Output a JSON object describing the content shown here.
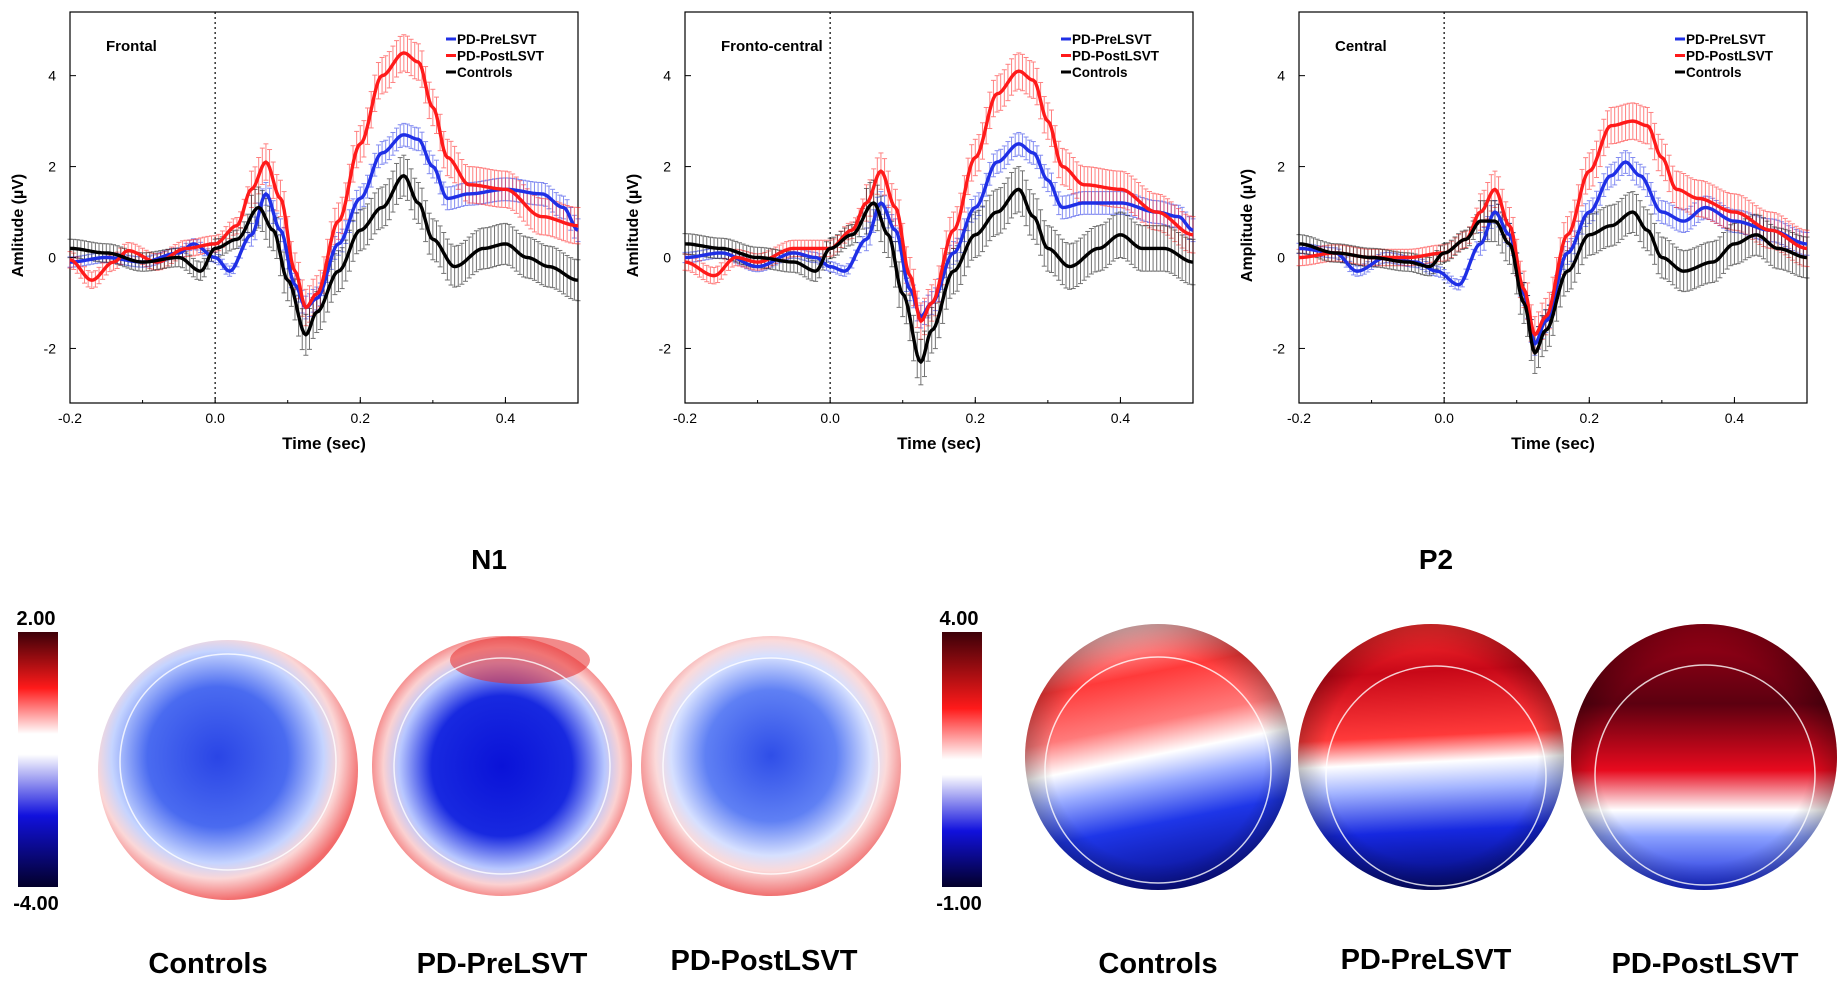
{
  "chart_data": [
    {
      "type": "line",
      "title": "Frontal",
      "xlabel": "Time (sec)",
      "ylabel": "Amlitude (µV)",
      "xlim": [
        -0.2,
        0.5
      ],
      "ylim": [
        -3.2,
        5.4
      ],
      "xticks": [
        "-0.2",
        "0.0",
        "0.2",
        "0.4"
      ],
      "yticks": [
        "-2",
        "0",
        "2",
        "4"
      ],
      "legend": "top-right",
      "stimulus_onset": 0.0,
      "series": [
        {
          "name": "PD-PreLSVT",
          "color": "#1f2fe6",
          "points": [
            [
              -0.2,
              -0.1
            ],
            [
              -0.15,
              0.0
            ],
            [
              -0.1,
              -0.1
            ],
            [
              -0.05,
              0.1
            ],
            [
              -0.03,
              0.3
            ],
            [
              0.0,
              0.0
            ],
            [
              0.02,
              -0.3
            ],
            [
              0.05,
              0.5
            ],
            [
              0.07,
              1.4
            ],
            [
              0.09,
              0.6
            ],
            [
              0.11,
              -0.6
            ],
            [
              0.125,
              -1.1
            ],
            [
              0.14,
              -0.9
            ],
            [
              0.17,
              0.3
            ],
            [
              0.2,
              1.3
            ],
            [
              0.23,
              2.3
            ],
            [
              0.26,
              2.7
            ],
            [
              0.28,
              2.6
            ],
            [
              0.3,
              2.0
            ],
            [
              0.32,
              1.3
            ],
            [
              0.35,
              1.4
            ],
            [
              0.4,
              1.5
            ],
            [
              0.45,
              1.4
            ],
            [
              0.48,
              1.1
            ],
            [
              0.5,
              0.6
            ]
          ],
          "err": 0.25
        },
        {
          "name": "PD-PostLSVT",
          "color": "#ff1a1a",
          "points": [
            [
              -0.2,
              -0.05
            ],
            [
              -0.17,
              -0.5
            ],
            [
              -0.14,
              -0.1
            ],
            [
              -0.12,
              0.15
            ],
            [
              -0.08,
              -0.1
            ],
            [
              -0.04,
              0.2
            ],
            [
              0.0,
              0.3
            ],
            [
              0.03,
              0.7
            ],
            [
              0.05,
              1.5
            ],
            [
              0.07,
              2.1
            ],
            [
              0.09,
              1.3
            ],
            [
              0.11,
              -0.3
            ],
            [
              0.125,
              -1.1
            ],
            [
              0.14,
              -0.8
            ],
            [
              0.17,
              0.8
            ],
            [
              0.2,
              2.5
            ],
            [
              0.23,
              4.0
            ],
            [
              0.26,
              4.5
            ],
            [
              0.28,
              4.3
            ],
            [
              0.3,
              3.3
            ],
            [
              0.32,
              2.2
            ],
            [
              0.35,
              1.6
            ],
            [
              0.4,
              1.5
            ],
            [
              0.45,
              0.9
            ],
            [
              0.5,
              0.7
            ]
          ],
          "err": 0.4
        },
        {
          "name": "Controls",
          "color": "#000000",
          "points": [
            [
              -0.2,
              0.2
            ],
            [
              -0.15,
              0.1
            ],
            [
              -0.1,
              -0.1
            ],
            [
              -0.05,
              0.0
            ],
            [
              -0.02,
              -0.3
            ],
            [
              0.0,
              0.2
            ],
            [
              0.03,
              0.4
            ],
            [
              0.06,
              1.1
            ],
            [
              0.08,
              0.6
            ],
            [
              0.1,
              -0.5
            ],
            [
              0.125,
              -1.7
            ],
            [
              0.14,
              -1.2
            ],
            [
              0.17,
              -0.3
            ],
            [
              0.2,
              0.6
            ],
            [
              0.23,
              1.1
            ],
            [
              0.26,
              1.8
            ],
            [
              0.28,
              1.2
            ],
            [
              0.3,
              0.4
            ],
            [
              0.33,
              -0.2
            ],
            [
              0.37,
              0.2
            ],
            [
              0.4,
              0.3
            ],
            [
              0.43,
              0.0
            ],
            [
              0.46,
              -0.2
            ],
            [
              0.5,
              -0.5
            ]
          ],
          "err": 0.45
        }
      ]
    },
    {
      "type": "line",
      "title": "Fronto-central",
      "xlabel": "Time (sec)",
      "ylabel": "Amlitude (µV)",
      "xlim": [
        -0.2,
        0.5
      ],
      "ylim": [
        -3.2,
        5.4
      ],
      "xticks": [
        "-0.2",
        "0.0",
        "0.2",
        "0.4"
      ],
      "yticks": [
        "-2",
        "0",
        "2",
        "4"
      ],
      "legend": "top-right",
      "stimulus_onset": 0.0,
      "series": [
        {
          "name": "PD-PreLSVT",
          "color": "#1f2fe6",
          "points": [
            [
              -0.2,
              0.0
            ],
            [
              -0.15,
              0.1
            ],
            [
              -0.1,
              -0.2
            ],
            [
              -0.05,
              0.1
            ],
            [
              -0.02,
              0.0
            ],
            [
              0.0,
              -0.2
            ],
            [
              0.02,
              -0.3
            ],
            [
              0.05,
              0.4
            ],
            [
              0.07,
              1.2
            ],
            [
              0.09,
              0.6
            ],
            [
              0.11,
              -0.7
            ],
            [
              0.125,
              -1.3
            ],
            [
              0.14,
              -1.0
            ],
            [
              0.17,
              0.1
            ],
            [
              0.2,
              1.1
            ],
            [
              0.23,
              2.1
            ],
            [
              0.26,
              2.5
            ],
            [
              0.28,
              2.3
            ],
            [
              0.3,
              1.7
            ],
            [
              0.32,
              1.1
            ],
            [
              0.35,
              1.2
            ],
            [
              0.4,
              1.2
            ],
            [
              0.45,
              1.0
            ],
            [
              0.48,
              0.9
            ],
            [
              0.5,
              0.6
            ]
          ],
          "err": 0.25
        },
        {
          "name": "PD-PostLSVT",
          "color": "#ff1a1a",
          "points": [
            [
              -0.2,
              -0.1
            ],
            [
              -0.16,
              -0.4
            ],
            [
              -0.13,
              0.0
            ],
            [
              -0.1,
              -0.1
            ],
            [
              -0.05,
              0.2
            ],
            [
              0.0,
              0.2
            ],
            [
              0.03,
              0.6
            ],
            [
              0.05,
              1.2
            ],
            [
              0.07,
              1.9
            ],
            [
              0.09,
              1.1
            ],
            [
              0.11,
              -0.4
            ],
            [
              0.125,
              -1.4
            ],
            [
              0.14,
              -1.0
            ],
            [
              0.17,
              0.6
            ],
            [
              0.2,
              2.2
            ],
            [
              0.23,
              3.6
            ],
            [
              0.26,
              4.1
            ],
            [
              0.28,
              3.9
            ],
            [
              0.3,
              3.0
            ],
            [
              0.32,
              2.0
            ],
            [
              0.35,
              1.6
            ],
            [
              0.4,
              1.5
            ],
            [
              0.45,
              1.0
            ],
            [
              0.5,
              0.5
            ]
          ],
          "err": 0.4
        },
        {
          "name": "Controls",
          "color": "#000000",
          "points": [
            [
              -0.2,
              0.3
            ],
            [
              -0.15,
              0.2
            ],
            [
              -0.1,
              0.0
            ],
            [
              -0.05,
              -0.1
            ],
            [
              -0.02,
              -0.3
            ],
            [
              0.0,
              0.2
            ],
            [
              0.03,
              0.5
            ],
            [
              0.06,
              1.2
            ],
            [
              0.08,
              0.5
            ],
            [
              0.1,
              -0.8
            ],
            [
              0.125,
              -2.3
            ],
            [
              0.14,
              -1.6
            ],
            [
              0.17,
              -0.3
            ],
            [
              0.2,
              0.5
            ],
            [
              0.23,
              1.0
            ],
            [
              0.26,
              1.5
            ],
            [
              0.28,
              0.9
            ],
            [
              0.3,
              0.2
            ],
            [
              0.33,
              -0.2
            ],
            [
              0.37,
              0.2
            ],
            [
              0.4,
              0.5
            ],
            [
              0.43,
              0.2
            ],
            [
              0.46,
              0.2
            ],
            [
              0.5,
              -0.1
            ]
          ],
          "err": 0.5
        }
      ]
    },
    {
      "type": "line",
      "title": "Central",
      "xlabel": "Time (sec)",
      "ylabel": "Amplitude (µV)",
      "xlim": [
        -0.2,
        0.5
      ],
      "ylim": [
        -3.2,
        5.4
      ],
      "xticks": [
        "-0.2",
        "0.0",
        "0.2",
        "0.4"
      ],
      "yticks": [
        "-2",
        "0",
        "2",
        "4"
      ],
      "legend": "top-right",
      "stimulus_onset": 0.0,
      "series": [
        {
          "name": "PD-PreLSVT",
          "color": "#1f2fe6",
          "points": [
            [
              -0.2,
              0.2
            ],
            [
              -0.15,
              0.1
            ],
            [
              -0.12,
              -0.3
            ],
            [
              -0.08,
              0.0
            ],
            [
              -0.04,
              -0.1
            ],
            [
              -0.01,
              -0.3
            ],
            [
              0.02,
              -0.6
            ],
            [
              0.05,
              0.3
            ],
            [
              0.07,
              1.0
            ],
            [
              0.09,
              0.5
            ],
            [
              0.11,
              -0.8
            ],
            [
              0.125,
              -1.9
            ],
            [
              0.14,
              -1.4
            ],
            [
              0.17,
              0.1
            ],
            [
              0.2,
              1.0
            ],
            [
              0.23,
              1.8
            ],
            [
              0.25,
              2.1
            ],
            [
              0.27,
              1.8
            ],
            [
              0.3,
              1.0
            ],
            [
              0.33,
              0.8
            ],
            [
              0.36,
              1.1
            ],
            [
              0.4,
              0.8
            ],
            [
              0.45,
              0.6
            ],
            [
              0.5,
              0.3
            ]
          ],
          "err": 0.25
        },
        {
          "name": "PD-PostLSVT",
          "color": "#ff1a1a",
          "points": [
            [
              -0.2,
              0.0
            ],
            [
              -0.15,
              0.1
            ],
            [
              -0.1,
              0.0
            ],
            [
              -0.05,
              0.0
            ],
            [
              0.0,
              0.1
            ],
            [
              0.03,
              0.4
            ],
            [
              0.05,
              1.0
            ],
            [
              0.07,
              1.5
            ],
            [
              0.09,
              0.7
            ],
            [
              0.11,
              -0.7
            ],
            [
              0.125,
              -1.7
            ],
            [
              0.14,
              -1.3
            ],
            [
              0.17,
              0.5
            ],
            [
              0.2,
              1.9
            ],
            [
              0.23,
              2.9
            ],
            [
              0.26,
              3.0
            ],
            [
              0.28,
              2.9
            ],
            [
              0.3,
              2.2
            ],
            [
              0.32,
              1.5
            ],
            [
              0.35,
              1.3
            ],
            [
              0.4,
              1.0
            ],
            [
              0.45,
              0.6
            ],
            [
              0.5,
              0.2
            ]
          ],
          "err": 0.4
        },
        {
          "name": "Controls",
          "color": "#000000",
          "points": [
            [
              -0.2,
              0.3
            ],
            [
              -0.15,
              0.1
            ],
            [
              -0.1,
              0.0
            ],
            [
              -0.05,
              -0.1
            ],
            [
              -0.02,
              -0.2
            ],
            [
              0.0,
              0.1
            ],
            [
              0.03,
              0.4
            ],
            [
              0.05,
              0.8
            ],
            [
              0.07,
              0.8
            ],
            [
              0.09,
              0.3
            ],
            [
              0.11,
              -1.0
            ],
            [
              0.125,
              -2.1
            ],
            [
              0.14,
              -1.6
            ],
            [
              0.17,
              -0.3
            ],
            [
              0.2,
              0.5
            ],
            [
              0.23,
              0.7
            ],
            [
              0.26,
              1.0
            ],
            [
              0.28,
              0.6
            ],
            [
              0.3,
              0.0
            ],
            [
              0.33,
              -0.3
            ],
            [
              0.37,
              -0.1
            ],
            [
              0.4,
              0.3
            ],
            [
              0.43,
              0.5
            ],
            [
              0.46,
              0.2
            ],
            [
              0.5,
              0.0
            ]
          ],
          "err": 0.45
        }
      ]
    }
  ],
  "topomaps": {
    "n1": {
      "title": "N1",
      "scale_max": "2.00",
      "scale_min": "-4.00",
      "labels": [
        "Controls",
        "PD-PreLSVT",
        "PD-PostLSVT"
      ]
    },
    "p2": {
      "title": "P2",
      "scale_max": "4.00",
      "scale_min": "-1.00",
      "labels": [
        "Controls",
        "PD-PreLSVT",
        "PD-PostLSVT"
      ]
    }
  }
}
